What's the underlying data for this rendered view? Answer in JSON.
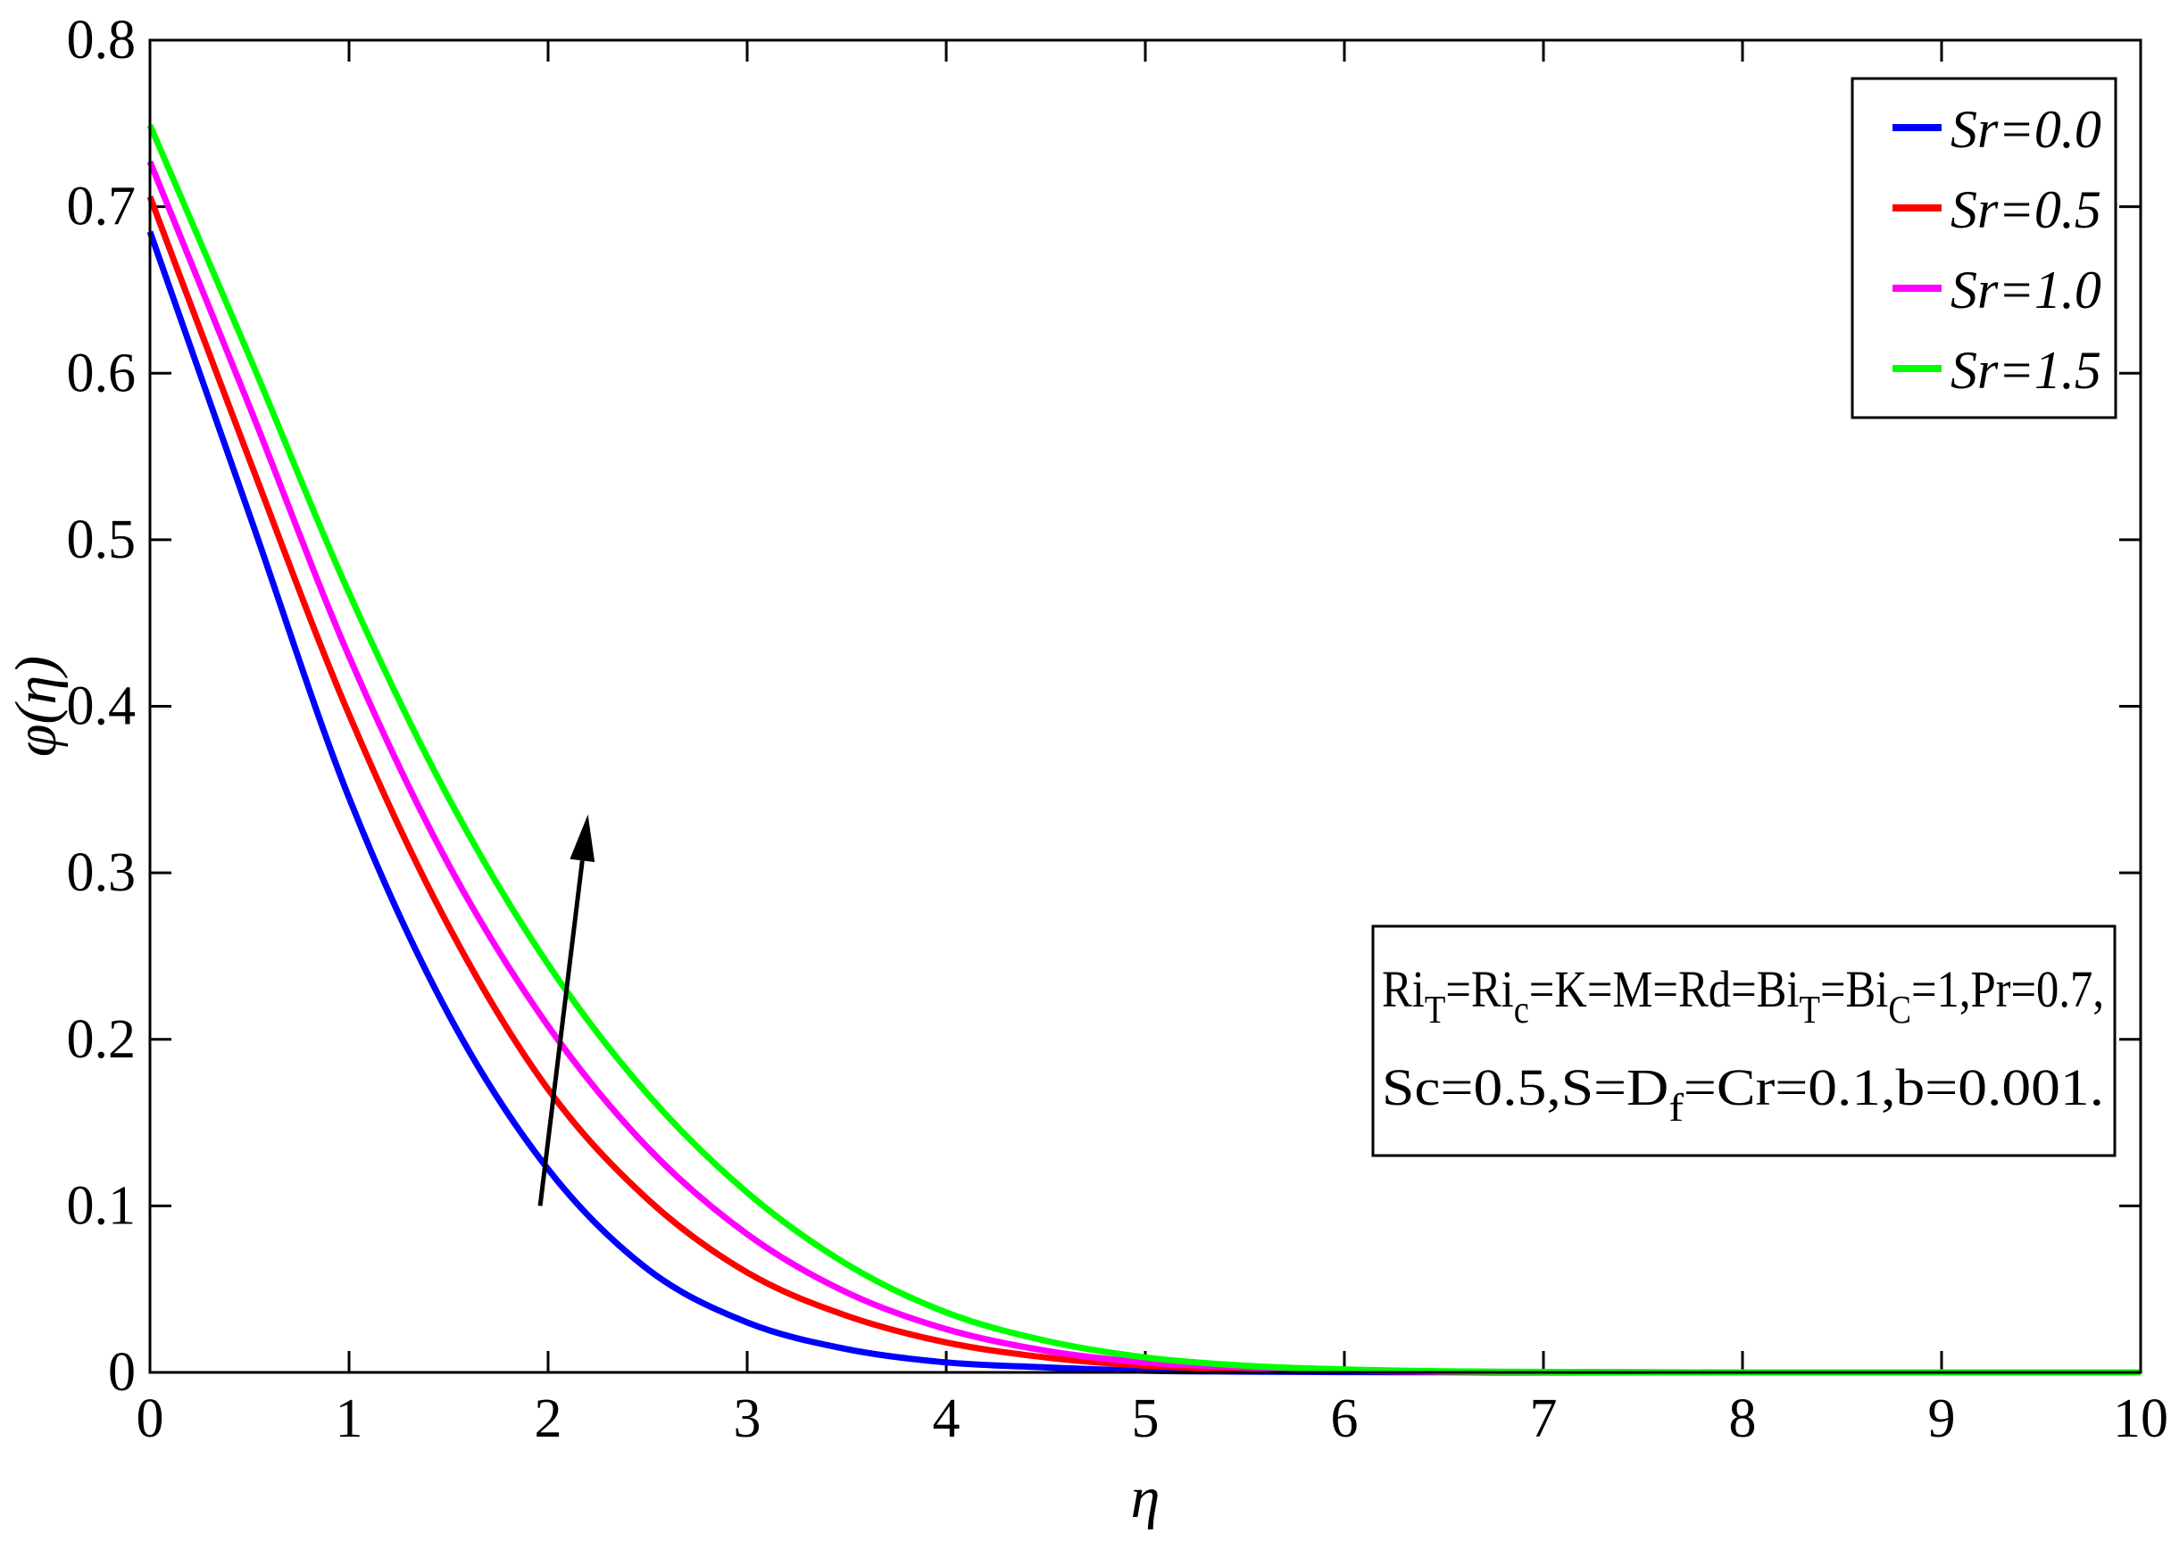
{
  "chart_data": {
    "type": "line",
    "xlabel": "η",
    "ylabel": "φ(η)",
    "xlim": [
      0,
      10
    ],
    "ylim": [
      0,
      0.8
    ],
    "x_ticks": [
      "0",
      "1",
      "2",
      "3",
      "4",
      "5",
      "6",
      "7",
      "8",
      "9",
      "10"
    ],
    "y_ticks": [
      "0",
      "0.1",
      "0.2",
      "0.3",
      "0.4",
      "0.5",
      "0.6",
      "0.7",
      "0.8"
    ],
    "grid": false,
    "legend_position": "top-right",
    "x": [
      0,
      0.5,
      1,
      1.5,
      2,
      2.5,
      3,
      3.5,
      4,
      4.5,
      5,
      5.5,
      6,
      6.5,
      7,
      8,
      9,
      10
    ],
    "series": [
      {
        "name": "Sr=0.0",
        "color": "#0000ff",
        "values": [
          0.685,
          0.515,
          0.345,
          0.215,
          0.122,
          0.062,
          0.03,
          0.014,
          0.006,
          0.003,
          0.001,
          0.0005,
          0.0002,
          0.0001,
          0,
          0,
          0,
          0
        ]
      },
      {
        "name": "Sr=0.5",
        "color": "#ff0000",
        "values": [
          0.706,
          0.548,
          0.395,
          0.268,
          0.17,
          0.104,
          0.06,
          0.034,
          0.018,
          0.009,
          0.004,
          0.002,
          0.001,
          0.0004,
          0.0002,
          0,
          0,
          0
        ]
      },
      {
        "name": "Sr=1.0",
        "color": "#ff00ff",
        "values": [
          0.727,
          0.58,
          0.43,
          0.305,
          0.208,
          0.135,
          0.083,
          0.048,
          0.026,
          0.013,
          0.006,
          0.003,
          0.0012,
          0.0005,
          0.0002,
          0,
          0,
          0
        ]
      },
      {
        "name": "Sr=1.5",
        "color": "#00ff00",
        "values": [
          0.749,
          0.61,
          0.468,
          0.345,
          0.245,
          0.167,
          0.108,
          0.065,
          0.036,
          0.019,
          0.009,
          0.004,
          0.0018,
          0.0007,
          0.0003,
          0,
          0,
          0
        ]
      }
    ],
    "annotations": {
      "arrow": {
        "from": [
          1.96,
          0.1
        ],
        "to": [
          2.2,
          0.335
        ],
        "color": "#000000"
      },
      "parameters_box": {
        "line1": [
          {
            "t": "Ri"
          },
          {
            "t": "T",
            "sub": true
          },
          {
            "t": "=Ri"
          },
          {
            "t": "c",
            "sub": true
          },
          {
            "t": "=K=M=Rd=Bi"
          },
          {
            "t": "T",
            "sub": true
          },
          {
            "t": "=Bi"
          },
          {
            "t": "C",
            "sub": true
          },
          {
            "t": "=1,Pr=0.7,"
          }
        ],
        "line2": [
          {
            "t": "Sc=0.5,S=D"
          },
          {
            "t": "f",
            "sub": true
          },
          {
            "t": "=Cr=0.1,b=0.001."
          }
        ]
      }
    }
  }
}
